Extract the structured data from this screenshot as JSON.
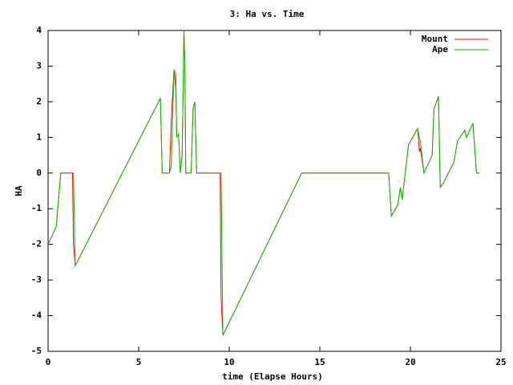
{
  "chart_data": {
    "type": "line",
    "title": "3: Ha vs. Time",
    "xlabel": "time (Elapse Hours)",
    "ylabel": "HA",
    "x": [
      0,
      0.45,
      0.7,
      1.35,
      1.4,
      1.5,
      6.2,
      6.3,
      6.7,
      6.8,
      6.95,
      7.05,
      7.1,
      7.2,
      7.3,
      7.4,
      7.5,
      7.55,
      7.6,
      7.8,
      7.9,
      8.0,
      8.1,
      8.2,
      9.5,
      9.55,
      9.65,
      14,
      18.8,
      18.95,
      19.3,
      19.45,
      19.55,
      19.6,
      19.9,
      20.4,
      20.5,
      20.55,
      20.75,
      21.2,
      21.3,
      21.55,
      21.65,
      21.8,
      22.4,
      22.6,
      23.0,
      23.1,
      23.45,
      23.65,
      23.8
    ],
    "series": [
      {
        "name": "Mount",
        "color": "#ff0000",
        "values": [
          -2,
          -1.5,
          0,
          0,
          -2.0,
          -2.6,
          2.1,
          0,
          0,
          1.5,
          2.9,
          2.4,
          1,
          1.1,
          0,
          0.5,
          4,
          3,
          0,
          0,
          0,
          1.8,
          2,
          0,
          0,
          -3.5,
          -4.55,
          0,
          0,
          -1.2,
          -0.9,
          -0.4,
          -0.75,
          -0.5,
          0.8,
          1.25,
          0.6,
          0.7,
          0,
          0.5,
          1.8,
          2.15,
          -0.4,
          -0.3,
          0.3,
          0.9,
          1.2,
          1.0,
          1.4,
          0,
          0
        ]
      },
      {
        "name": "Ape",
        "color": "#00c000",
        "values": [
          -2,
          -1.5,
          0,
          0,
          0,
          -2.6,
          2.1,
          0,
          0,
          0.2,
          2.9,
          2.8,
          1,
          1.1,
          0,
          0.5,
          4,
          3,
          0,
          0,
          0,
          1.8,
          2,
          0,
          0,
          0,
          -4.55,
          0,
          0,
          -1.2,
          -0.9,
          -0.4,
          -0.75,
          -0.5,
          0.8,
          1.25,
          1.0,
          0.9,
          0,
          0.5,
          1.8,
          2.15,
          -0.4,
          -0.3,
          0.3,
          0.9,
          1.2,
          1.0,
          1.4,
          0,
          0
        ]
      }
    ],
    "xlim": [
      0,
      25
    ],
    "xticks": [
      0,
      5,
      10,
      15,
      20,
      25
    ],
    "ylim": [
      -5,
      4
    ],
    "yticks": [
      -5,
      -4,
      -3,
      -2,
      -1,
      0,
      1,
      2,
      3,
      4
    ],
    "legend": "top right"
  }
}
